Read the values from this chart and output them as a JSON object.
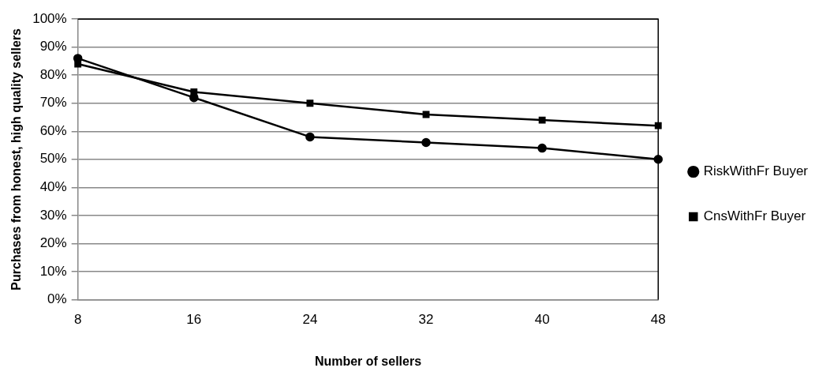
{
  "chart_data": {
    "type": "line",
    "xlabel": "Number of sellers",
    "ylabel": "Purchases from honest, high quality sellers",
    "x": [
      8,
      16,
      24,
      32,
      40,
      48
    ],
    "xlim": [
      8,
      48
    ],
    "xticks": [
      8,
      16,
      24,
      32,
      40,
      48
    ],
    "ylim": [
      0,
      100
    ],
    "yticks": [
      {
        "value": 0,
        "label": "0%"
      },
      {
        "value": 10,
        "label": "10%"
      },
      {
        "value": 20,
        "label": "20%"
      },
      {
        "value": 30,
        "label": "30%"
      },
      {
        "value": 40,
        "label": "40%"
      },
      {
        "value": 50,
        "label": "50%"
      },
      {
        "value": 60,
        "label": "60%"
      },
      {
        "value": 70,
        "label": "70%"
      },
      {
        "value": 80,
        "label": "80%"
      },
      {
        "value": 90,
        "label": "90%"
      },
      {
        "value": 100,
        "label": "100%"
      }
    ],
    "grid": "y",
    "legend": "right",
    "line_style": "solid",
    "series": [
      {
        "name": "RiskWithFr Buyer",
        "color": "#000000",
        "marker": "circle",
        "values": [
          86,
          72,
          58,
          56,
          54,
          50
        ]
      },
      {
        "name": "CnsWithFr Buyer",
        "color": "#000000",
        "marker": "square",
        "values": [
          84,
          74,
          70,
          66,
          64,
          62
        ]
      }
    ]
  }
}
